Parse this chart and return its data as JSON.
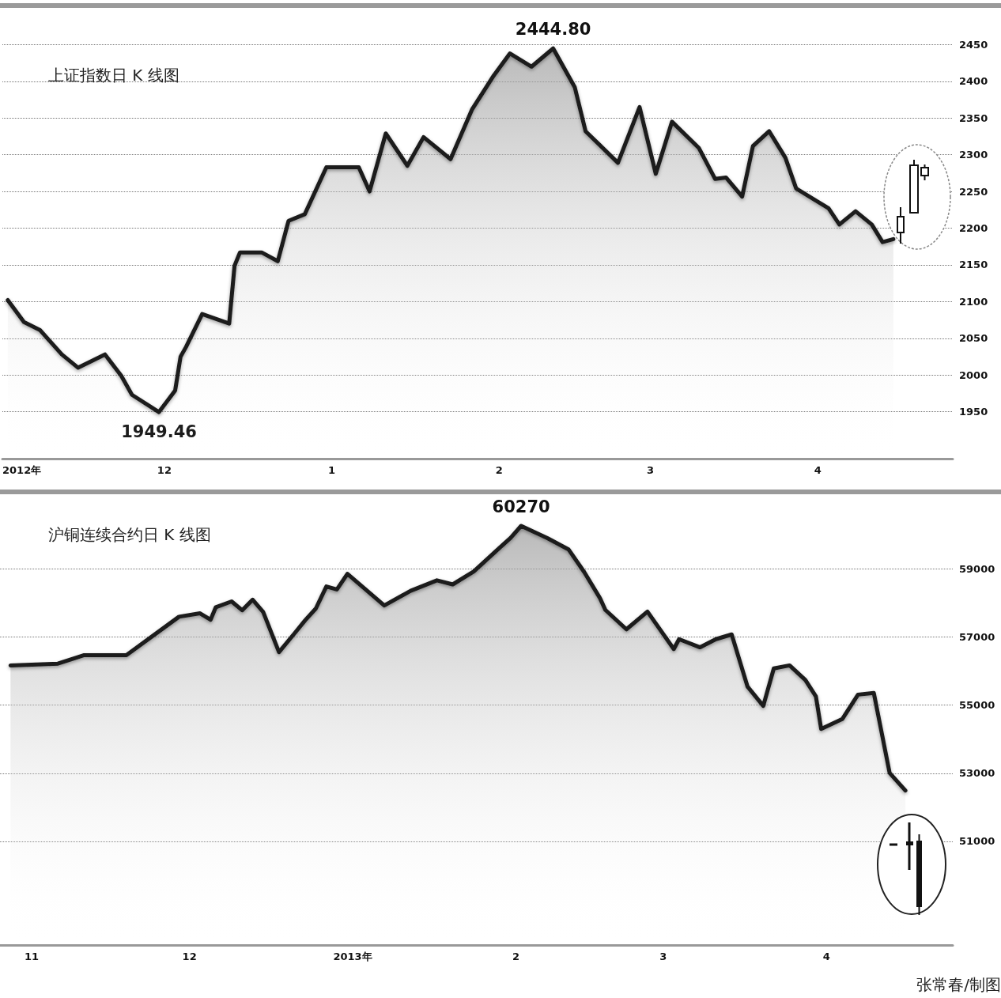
{
  "chart_data": [
    {
      "type": "area",
      "title": "上证指数日 K 线图",
      "color": "#1a1a1a",
      "grid": "y",
      "xlim": [
        "2012-11-01",
        "2013-04-26"
      ],
      "ylim": [
        1886,
        2500
      ],
      "xticks": [
        {
          "value": "2012-11-01",
          "label": "2012年"
        },
        {
          "value": "2012-12-01",
          "label": "12"
        },
        {
          "value": "2013-01-01",
          "label": "1"
        },
        {
          "value": "2013-02-01",
          "label": "2"
        },
        {
          "value": "2013-03-01",
          "label": "3"
        },
        {
          "value": "2013-04-01",
          "label": "4"
        }
      ],
      "yticks": [
        1950,
        2000,
        2050,
        2100,
        2150,
        2200,
        2250,
        2300,
        2350,
        2400,
        2450
      ],
      "x": [
        "2012-11-02",
        "2012-11-05",
        "2012-11-08",
        "2012-11-12",
        "2012-11-15",
        "2012-11-20",
        "2012-11-23",
        "2012-11-25",
        "2012-11-30",
        "2012-12-03",
        "2012-12-04",
        "2012-12-05",
        "2012-12-08",
        "2012-12-13",
        "2012-12-14",
        "2012-12-15",
        "2012-12-19",
        "2012-12-22",
        "2012-12-24",
        "2012-12-27",
        "2012-12-31",
        "2013-01-06",
        "2013-01-08",
        "2013-01-11",
        "2013-01-15",
        "2013-01-18",
        "2013-01-23",
        "2013-01-27",
        "2013-01-31",
        "2013-02-03",
        "2013-02-07",
        "2013-02-11",
        "2013-02-15",
        "2013-02-17",
        "2013-02-23",
        "2013-02-27",
        "2013-03-02",
        "2013-03-05",
        "2013-03-10",
        "2013-03-13",
        "2013-03-15",
        "2013-03-18",
        "2013-03-20",
        "2013-03-23",
        "2013-03-26",
        "2013-03-28",
        "2013-04-03",
        "2013-04-05",
        "2013-04-08",
        "2013-04-11",
        "2013-04-13",
        "2013-04-15"
      ],
      "values": [
        2102,
        2072,
        2061,
        2028,
        2010,
        2028,
        1999,
        1973,
        1949.46,
        1979,
        2025,
        2038,
        2083,
        2070,
        2149,
        2167,
        2167,
        2155,
        2210,
        2219,
        2283,
        2283,
        2250,
        2329,
        2285,
        2324,
        2294,
        2362,
        2408,
        2438,
        2420,
        2444.8,
        2392,
        2332,
        2289,
        2365,
        2274,
        2345,
        2309,
        2267,
        2269,
        2243,
        2312,
        2332,
        2296,
        2254,
        2227,
        2205,
        2223,
        2205,
        2181,
        2185
      ],
      "annotations": [
        {
          "text": "2444.80",
          "x": "2013-02-11",
          "y": 2444.8
        },
        {
          "text": "1949.46",
          "x": "2012-11-30",
          "y": 1949.46
        }
      ]
    },
    {
      "type": "area",
      "title": "沪铜连续合约日 K 线图",
      "color": "#1a1a1a",
      "grid": "y",
      "xlim": [
        "2012-10-26",
        "2013-04-25"
      ],
      "ylim": [
        47950,
        61200
      ],
      "xticks": [
        {
          "value": "2012-11-01",
          "label": "11"
        },
        {
          "value": "2012-12-01",
          "label": "12"
        },
        {
          "value": "2013-01-01",
          "label": "2013年"
        },
        {
          "value": "2013-02-01",
          "label": "2"
        },
        {
          "value": "2013-03-01",
          "label": "3"
        },
        {
          "value": "2013-04-01",
          "label": "4"
        }
      ],
      "yticks": [
        51000,
        53000,
        55000,
        57000,
        59000
      ],
      "x": [
        "2012-10-28",
        "2012-11-06",
        "2012-11-11",
        "2012-11-19",
        "2012-11-29",
        "2012-12-03",
        "2012-12-05",
        "2012-12-06",
        "2012-12-09",
        "2012-12-11",
        "2012-12-13",
        "2012-12-15",
        "2012-12-18",
        "2012-12-21",
        "2012-12-23",
        "2012-12-25",
        "2012-12-27",
        "2012-12-29",
        "2012-12-31",
        "2013-01-07",
        "2013-01-12",
        "2013-01-17",
        "2013-01-20",
        "2013-01-24",
        "2013-01-29",
        "2013-01-31",
        "2013-02-02",
        "2013-02-07",
        "2013-02-11",
        "2013-02-14",
        "2013-02-17",
        "2013-02-18",
        "2013-02-22",
        "2013-02-26",
        "2013-03-03",
        "2013-03-04",
        "2013-03-08",
        "2013-03-11",
        "2013-03-14",
        "2013-03-17",
        "2013-03-20",
        "2013-03-22",
        "2013-03-25",
        "2013-03-28",
        "2013-03-30",
        "2013-03-31",
        "2013-04-04",
        "2013-04-07",
        "2013-04-10",
        "2013-04-13",
        "2013-04-16"
      ],
      "values": [
        56170,
        56220,
        56470,
        56470,
        57600,
        57700,
        57510,
        57880,
        58050,
        57790,
        58100,
        57740,
        56560,
        57120,
        57500,
        57840,
        58490,
        58400,
        58860,
        57930,
        58360,
        58670,
        58550,
        58930,
        59640,
        59920,
        60270,
        59910,
        59580,
        58910,
        58140,
        57800,
        57230,
        57750,
        56650,
        56940,
        56700,
        56940,
        57080,
        55550,
        54980,
        56080,
        56170,
        55740,
        55260,
        54300,
        54590,
        55310,
        55360,
        53010,
        52490
      ],
      "annotations": [
        {
          "text": "60270",
          "x": "2013-02-02",
          "y": 60270
        },
        "张常春/制图"
      ]
    }
  ]
}
